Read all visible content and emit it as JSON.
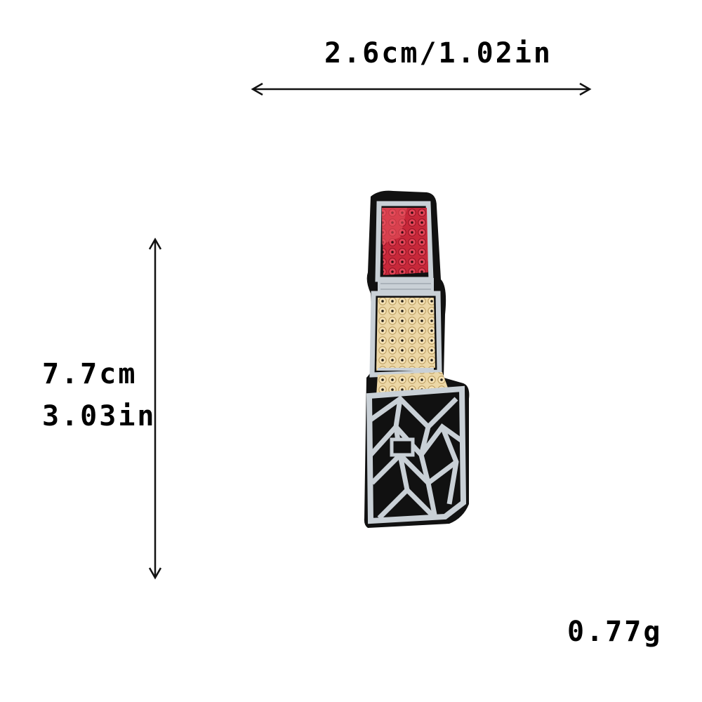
{
  "dimensions": {
    "width_label": "2.6cm/1.02in",
    "height_cm": "7.7cm",
    "height_in": "3.03in",
    "weight": "0.77g"
  },
  "product": {
    "subject": "lipstick-embroidered-sequin-patch",
    "colors": {
      "backing": "#111111",
      "stitch": "#c9d0d6",
      "cap": "#e23a4a",
      "tube": "#e9d2a0"
    }
  }
}
